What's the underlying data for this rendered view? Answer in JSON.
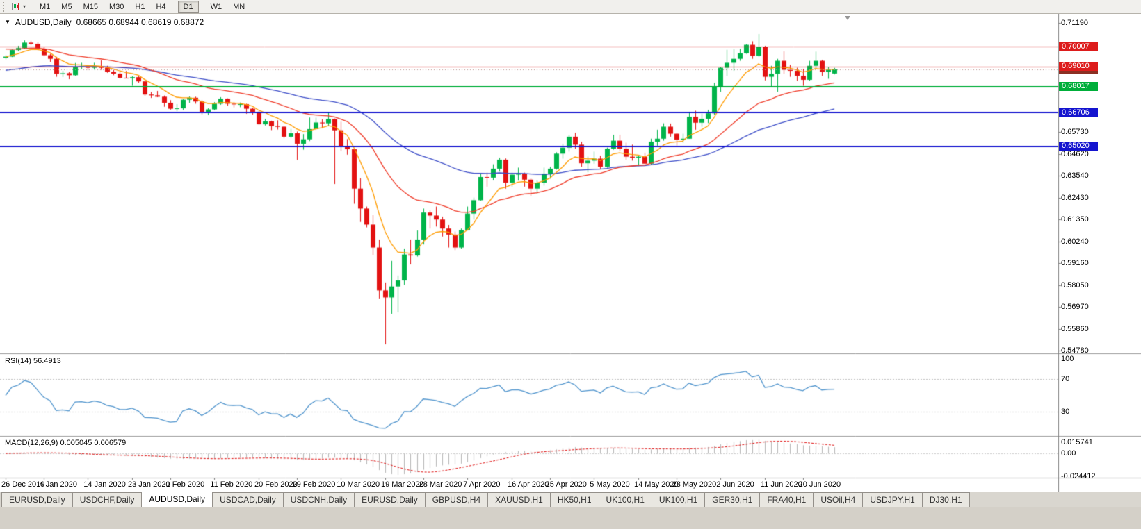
{
  "toolbar": {
    "timeframes": [
      {
        "label": "M1"
      },
      {
        "label": "M5"
      },
      {
        "label": "M15"
      },
      {
        "label": "M30"
      },
      {
        "label": "H1"
      },
      {
        "label": "H4",
        "sep_after": true
      },
      {
        "label": "D1",
        "active": true,
        "sep_after": true
      },
      {
        "label": "W1"
      },
      {
        "label": "MN"
      }
    ]
  },
  "chart": {
    "symbol_period": "AUDUSD,Daily",
    "ohlc_text": "0.68665 0.68944 0.68619 0.68872"
  },
  "indicators": {
    "rsi": {
      "label": "RSI(14) 56.4913",
      "period": 14,
      "value": 56.4913,
      "levels": [
        70,
        30
      ],
      "axis_ticks": [
        100,
        70,
        30
      ],
      "color": "#4f94cd"
    },
    "macd": {
      "label": "MACD(12,26,9) 0.005045 0.006579",
      "fast": 12,
      "slow": 26,
      "signal": 9,
      "main_value": 0.005045,
      "signal_value": 0.006579,
      "axis_ticks": [
        "0.015741",
        "0.00",
        "-0.024412"
      ],
      "range": [
        -0.024412,
        0.015741
      ],
      "histogram_color": "#b6b6b6",
      "signal_color": "#e01010"
    }
  },
  "chart_data": {
    "type": "candlestick",
    "title": "AUDUSD,Daily",
    "symbol": "AUDUSD",
    "timeframe": "Daily",
    "ylim": [
      0.5465,
      0.7165
    ],
    "bull_color": "#00b44a",
    "bear_color": "#e31212",
    "price_ticks": [
      "0.71190",
      "0.65730",
      "0.64620",
      "0.63540",
      "0.62430",
      "0.61350",
      "0.60240",
      "0.59160",
      "0.58050",
      "0.56970",
      "0.55860",
      "0.54780"
    ],
    "price_badges": [
      {
        "text": "0.70007",
        "value": 0.70007,
        "color": "#dd1c1c",
        "line": {
          "style": "solid",
          "width": 1
        }
      },
      {
        "text": "0.69010",
        "value": 0.6901,
        "color": "#dd1c1c",
        "line": {
          "style": "solid",
          "width": 1
        }
      },
      {
        "text": "0.68872",
        "value": 0.68872,
        "color": "#8b2f23",
        "line": {
          "style": "dotted",
          "width": 1
        },
        "current_price": true
      },
      {
        "text": "0.68017",
        "value": 0.68017,
        "color": "#00ae3a",
        "line": {
          "style": "solid",
          "width": 2
        }
      },
      {
        "text": "0.66706",
        "value": 0.66706,
        "color": "#1414cf",
        "line": {
          "style": "solid",
          "width": 2
        }
      },
      {
        "text": "0.65020",
        "value": 0.6502,
        "color": "#1414cf",
        "line": {
          "style": "solid",
          "width": 2
        }
      }
    ],
    "moving_averages": [
      {
        "period": 55,
        "method": "ema",
        "color": "#3b4cc8",
        "seed": 0.688
      },
      {
        "period": 25,
        "method": "ema",
        "color": "#f03a28",
        "seed": 0.6992
      },
      {
        "period": 8,
        "method": "ema",
        "color": "#ff9c00",
        "seed": 0.695
      }
    ],
    "candles": [
      [
        0.6945,
        0.6958,
        0.6938,
        0.6951
      ],
      [
        0.6951,
        0.6986,
        0.6949,
        0.6984
      ],
      [
        0.6984,
        0.7005,
        0.6978,
        0.6994
      ],
      [
        0.6994,
        0.7032,
        0.6989,
        0.7021
      ],
      [
        0.7021,
        0.703,
        0.7008,
        0.7015
      ],
      [
        0.7015,
        0.7023,
        0.6983,
        0.699
      ],
      [
        0.699,
        0.7,
        0.6952,
        0.6958
      ],
      [
        0.6958,
        0.6965,
        0.6925,
        0.694
      ],
      [
        0.694,
        0.695,
        0.685,
        0.6865
      ],
      [
        0.6865,
        0.688,
        0.6849,
        0.6868
      ],
      [
        0.6868,
        0.6874,
        0.6838,
        0.6858
      ],
      [
        0.6858,
        0.6919,
        0.6855,
        0.69
      ],
      [
        0.69,
        0.692,
        0.689,
        0.6902
      ],
      [
        0.6902,
        0.691,
        0.6883,
        0.6895
      ],
      [
        0.6895,
        0.692,
        0.6886,
        0.6903
      ],
      [
        0.6903,
        0.6932,
        0.6885,
        0.6895
      ],
      [
        0.6895,
        0.6905,
        0.687,
        0.6875
      ],
      [
        0.6875,
        0.6884,
        0.6858,
        0.6866
      ],
      [
        0.6866,
        0.6878,
        0.684,
        0.6845
      ],
      [
        0.6845,
        0.6879,
        0.6842,
        0.6843
      ],
      [
        0.6843,
        0.6853,
        0.6805,
        0.6848
      ],
      [
        0.6848,
        0.6854,
        0.682,
        0.6827
      ],
      [
        0.6827,
        0.6829,
        0.6755,
        0.6761
      ],
      [
        0.6761,
        0.6774,
        0.6744,
        0.6757
      ],
      [
        0.6757,
        0.6779,
        0.6748,
        0.675
      ],
      [
        0.675,
        0.6756,
        0.67,
        0.672
      ],
      [
        0.672,
        0.6733,
        0.6686,
        0.669
      ],
      [
        0.669,
        0.6713,
        0.6678,
        0.6692
      ],
      [
        0.6692,
        0.6738,
        0.6684,
        0.6735
      ],
      [
        0.6735,
        0.6751,
        0.672,
        0.6745
      ],
      [
        0.6745,
        0.675,
        0.6715,
        0.6726
      ],
      [
        0.6726,
        0.6733,
        0.6662,
        0.667
      ],
      [
        0.667,
        0.6692,
        0.6658,
        0.6687
      ],
      [
        0.6687,
        0.6723,
        0.6683,
        0.6715
      ],
      [
        0.6715,
        0.6748,
        0.671,
        0.674
      ],
      [
        0.674,
        0.6742,
        0.6705,
        0.6715
      ],
      [
        0.6715,
        0.6723,
        0.6697,
        0.6712
      ],
      [
        0.6712,
        0.6721,
        0.6698,
        0.6713
      ],
      [
        0.6713,
        0.6715,
        0.6665,
        0.669
      ],
      [
        0.669,
        0.6694,
        0.666,
        0.6675
      ],
      [
        0.6675,
        0.6678,
        0.661,
        0.6612
      ],
      [
        0.6612,
        0.664,
        0.6606,
        0.6627
      ],
      [
        0.6627,
        0.663,
        0.6583,
        0.6603
      ],
      [
        0.6603,
        0.6632,
        0.6586,
        0.66
      ],
      [
        0.66,
        0.6605,
        0.6542,
        0.655
      ],
      [
        0.655,
        0.6589,
        0.6543,
        0.6567
      ],
      [
        0.6567,
        0.6576,
        0.6434,
        0.6515
      ],
      [
        0.6515,
        0.6563,
        0.6485,
        0.6537
      ],
      [
        0.6537,
        0.6646,
        0.6528,
        0.6588
      ],
      [
        0.6588,
        0.6645,
        0.6585,
        0.6621
      ],
      [
        0.6621,
        0.6637,
        0.6593,
        0.6617
      ],
      [
        0.6617,
        0.6668,
        0.6603,
        0.6639
      ],
      [
        0.6639,
        0.6641,
        0.6313,
        0.6582
      ],
      [
        0.6582,
        0.6625,
        0.6477,
        0.65
      ],
      [
        0.65,
        0.6538,
        0.646,
        0.6487
      ],
      [
        0.6487,
        0.649,
        0.6214,
        0.629
      ],
      [
        0.629,
        0.6342,
        0.6123,
        0.619
      ],
      [
        0.619,
        0.62,
        0.6096,
        0.611
      ],
      [
        0.611,
        0.6157,
        0.5958,
        0.5995
      ],
      [
        0.5995,
        0.6035,
        0.574,
        0.578
      ],
      [
        0.578,
        0.582,
        0.551,
        0.5745
      ],
      [
        0.5745,
        0.5928,
        0.5663,
        0.58
      ],
      [
        0.58,
        0.5855,
        0.567,
        0.583
      ],
      [
        0.583,
        0.599,
        0.5808,
        0.596
      ],
      [
        0.596,
        0.6035,
        0.591,
        0.5955
      ],
      [
        0.5955,
        0.608,
        0.595,
        0.6035
      ],
      [
        0.6035,
        0.619,
        0.601,
        0.617
      ],
      [
        0.617,
        0.618,
        0.609,
        0.6155
      ],
      [
        0.6155,
        0.62,
        0.61,
        0.6135
      ],
      [
        0.6135,
        0.615,
        0.605,
        0.609
      ],
      [
        0.609,
        0.6108,
        0.5995,
        0.606
      ],
      [
        0.606,
        0.6075,
        0.5982,
        0.5995
      ],
      [
        0.5995,
        0.609,
        0.599,
        0.6082
      ],
      [
        0.6082,
        0.62,
        0.608,
        0.6165
      ],
      [
        0.6165,
        0.6245,
        0.6135,
        0.6232
      ],
      [
        0.6232,
        0.6365,
        0.623,
        0.6348
      ],
      [
        0.6348,
        0.637,
        0.63,
        0.6345
      ],
      [
        0.6345,
        0.6412,
        0.6331,
        0.639
      ],
      [
        0.639,
        0.6445,
        0.6375,
        0.6435
      ],
      [
        0.6435,
        0.6441,
        0.629,
        0.632
      ],
      [
        0.632,
        0.637,
        0.63,
        0.636
      ],
      [
        0.636,
        0.6395,
        0.633,
        0.6365
      ],
      [
        0.6365,
        0.637,
        0.63,
        0.6335
      ],
      [
        0.6335,
        0.634,
        0.6253,
        0.629
      ],
      [
        0.629,
        0.633,
        0.6265,
        0.632
      ],
      [
        0.632,
        0.6395,
        0.6305,
        0.6365
      ],
      [
        0.6365,
        0.64,
        0.634,
        0.639
      ],
      [
        0.639,
        0.6472,
        0.6385,
        0.6465
      ],
      [
        0.6465,
        0.6515,
        0.644,
        0.6495
      ],
      [
        0.6495,
        0.656,
        0.6475,
        0.655
      ],
      [
        0.655,
        0.657,
        0.649,
        0.651
      ],
      [
        0.651,
        0.6525,
        0.64,
        0.6417
      ],
      [
        0.6417,
        0.645,
        0.6372,
        0.643
      ],
      [
        0.643,
        0.6475,
        0.6415,
        0.644
      ],
      [
        0.644,
        0.6455,
        0.639,
        0.64
      ],
      [
        0.64,
        0.6495,
        0.6395,
        0.649
      ],
      [
        0.649,
        0.656,
        0.6485,
        0.653
      ],
      [
        0.653,
        0.656,
        0.648,
        0.649
      ],
      [
        0.649,
        0.652,
        0.6435,
        0.645
      ],
      [
        0.645,
        0.651,
        0.643,
        0.6445
      ],
      [
        0.6445,
        0.6455,
        0.6403,
        0.645
      ],
      [
        0.645,
        0.647,
        0.6415,
        0.6415
      ],
      [
        0.6415,
        0.654,
        0.641,
        0.6525
      ],
      [
        0.6525,
        0.6585,
        0.6505,
        0.654
      ],
      [
        0.654,
        0.6617,
        0.653,
        0.66
      ],
      [
        0.66,
        0.6616,
        0.655,
        0.6565
      ],
      [
        0.6565,
        0.657,
        0.6506,
        0.6535
      ],
      [
        0.6535,
        0.6565,
        0.652,
        0.654
      ],
      [
        0.654,
        0.6675,
        0.654,
        0.665
      ],
      [
        0.665,
        0.668,
        0.6585,
        0.662
      ],
      [
        0.662,
        0.6665,
        0.66,
        0.664
      ],
      [
        0.664,
        0.6685,
        0.6618,
        0.6667
      ],
      [
        0.6667,
        0.682,
        0.666,
        0.68
      ],
      [
        0.68,
        0.69,
        0.6775,
        0.6895
      ],
      [
        0.6895,
        0.6985,
        0.6855,
        0.692
      ],
      [
        0.692,
        0.6988,
        0.688,
        0.694
      ],
      [
        0.694,
        0.699,
        0.693,
        0.6968
      ],
      [
        0.6968,
        0.7013,
        0.6965,
        0.701
      ],
      [
        0.701,
        0.7028,
        0.694,
        0.6955
      ],
      [
        0.6955,
        0.7064,
        0.695,
        0.7
      ],
      [
        0.7,
        0.7005,
        0.6832,
        0.685
      ],
      [
        0.685,
        0.6905,
        0.68,
        0.6865
      ],
      [
        0.6865,
        0.694,
        0.6775,
        0.693
      ],
      [
        0.693,
        0.6977,
        0.6865,
        0.6885
      ],
      [
        0.6885,
        0.691,
        0.685,
        0.688
      ],
      [
        0.688,
        0.6895,
        0.683,
        0.6855
      ],
      [
        0.6855,
        0.689,
        0.6805,
        0.6835
      ],
      [
        0.6835,
        0.693,
        0.683,
        0.6905
      ],
      [
        0.6905,
        0.6976,
        0.689,
        0.693
      ],
      [
        0.693,
        0.6935,
        0.6855,
        0.6875
      ],
      [
        0.6875,
        0.6897,
        0.684,
        0.6885
      ],
      [
        0.68665,
        0.68944,
        0.68619,
        0.68872
      ]
    ],
    "date_labels": [
      [
        "26 Dec 2019",
        0
      ],
      [
        "4 Jan 2020",
        6
      ],
      [
        "14 Jan 2020",
        13
      ],
      [
        "23 Jan 2020",
        20
      ],
      [
        "1 Feb 2020",
        26
      ],
      [
        "11 Feb 2020",
        33
      ],
      [
        "20 Feb 2020",
        40
      ],
      [
        "29 Feb 2020",
        46
      ],
      [
        "10 Mar 2020",
        53
      ],
      [
        "19 Mar 2020",
        60
      ],
      [
        "28 Mar 2020",
        66
      ],
      [
        "7 Apr 2020",
        73
      ],
      [
        "16 Apr 2020",
        80
      ],
      [
        "25 Apr 2020",
        86
      ],
      [
        "5 May 2020",
        93
      ],
      [
        "14 May 2020",
        100
      ],
      [
        "23 May 2020",
        106
      ],
      [
        "2 Jun 2020",
        113
      ],
      [
        "11 Jun 2020",
        120
      ],
      [
        "20 Jun 2020",
        126
      ]
    ]
  },
  "bottom_tabs": [
    {
      "label": "EURUSD,Daily"
    },
    {
      "label": "USDCHF,Daily"
    },
    {
      "label": "AUDUSD,Daily",
      "active": true
    },
    {
      "label": "USDCAD,Daily"
    },
    {
      "label": "USDCNH,Daily"
    },
    {
      "label": "EURUSD,Daily"
    },
    {
      "label": "GBPUSD,H4"
    },
    {
      "label": "XAUUSD,H1"
    },
    {
      "label": "HK50,H1"
    },
    {
      "label": "UK100,H1"
    },
    {
      "label": "UK100,H1"
    },
    {
      "label": "GER30,H1"
    },
    {
      "label": "FRA40,H1"
    },
    {
      "label": "USOil,H4"
    },
    {
      "label": "USDJPY,H1"
    },
    {
      "label": "DJ30,H1"
    }
  ]
}
